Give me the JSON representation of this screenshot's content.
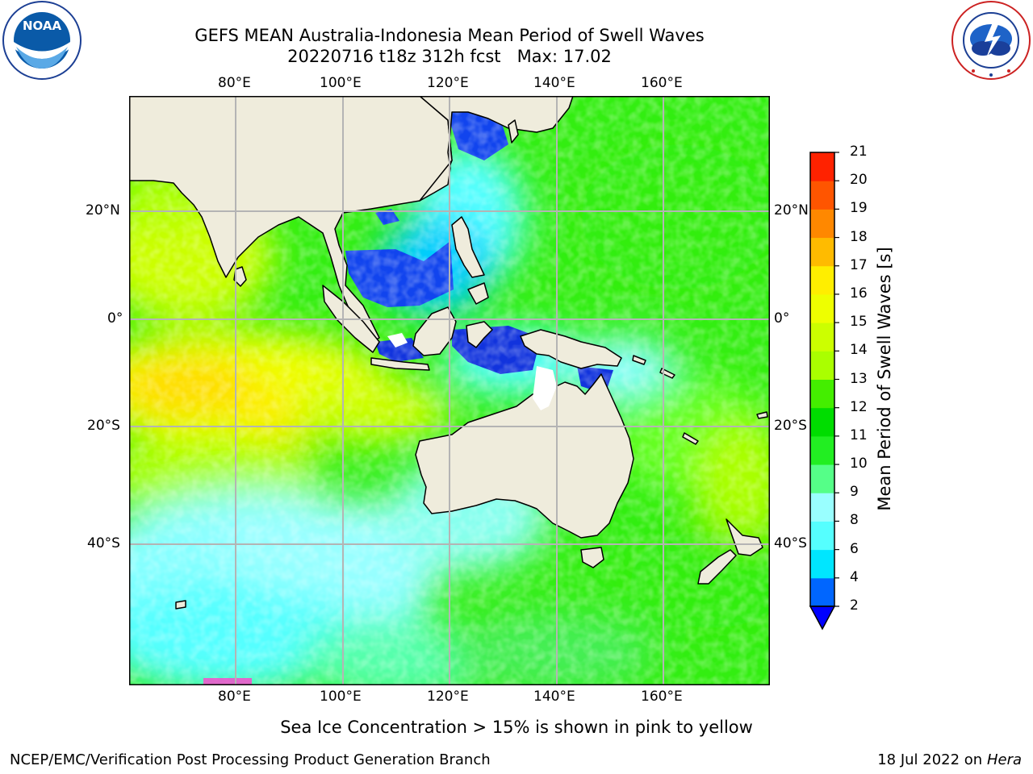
{
  "header": {
    "title_line1": "GEFS MEAN Australia-Indonesia Mean Period of Swell Waves",
    "title_line2": "20220716 t18z 312h fcst   Max: 17.02"
  },
  "logos": {
    "left_name": "NOAA",
    "left_ring_text": "NATIONAL OCEANIC AND ATMOSPHERIC ADMINISTRATION · U.S. DEPARTMENT OF COMMERCE",
    "right_ring_text": "NATIONAL WEATHER SERVICE"
  },
  "map": {
    "lon_labels": [
      "80°E",
      "100°E",
      "120°E",
      "140°E",
      "160°E"
    ],
    "lat_labels": [
      "20°N",
      "0°",
      "20°S",
      "40°S"
    ],
    "land_color": "#efecdc",
    "grid_color": "#b4b4b4"
  },
  "colorbar": {
    "label": "Mean Period of Swell Waves [s]",
    "ticks": [
      "2",
      "4",
      "6",
      "8",
      "9",
      "10",
      "11",
      "12",
      "13",
      "14",
      "15",
      "16",
      "17",
      "18",
      "19",
      "20",
      "21"
    ],
    "colors": [
      "#0066ff",
      "#00e6ff",
      "#55ffff",
      "#99ffff",
      "#55ff88",
      "#22ee22",
      "#00dd00",
      "#44ee00",
      "#aaff00",
      "#ccff00",
      "#eeff00",
      "#ffee00",
      "#ffbb00",
      "#ff8800",
      "#ff5500",
      "#ff2200"
    ],
    "extend_color": "#0000ff"
  },
  "footer": {
    "note": "Sea Ice Concentration > 15% is shown in pink to yellow",
    "left": "NCEP/EMC/Verification Post Processing Product Generation Branch",
    "right_date": "18 Jul 2022 on ",
    "right_host": "Hera"
  }
}
